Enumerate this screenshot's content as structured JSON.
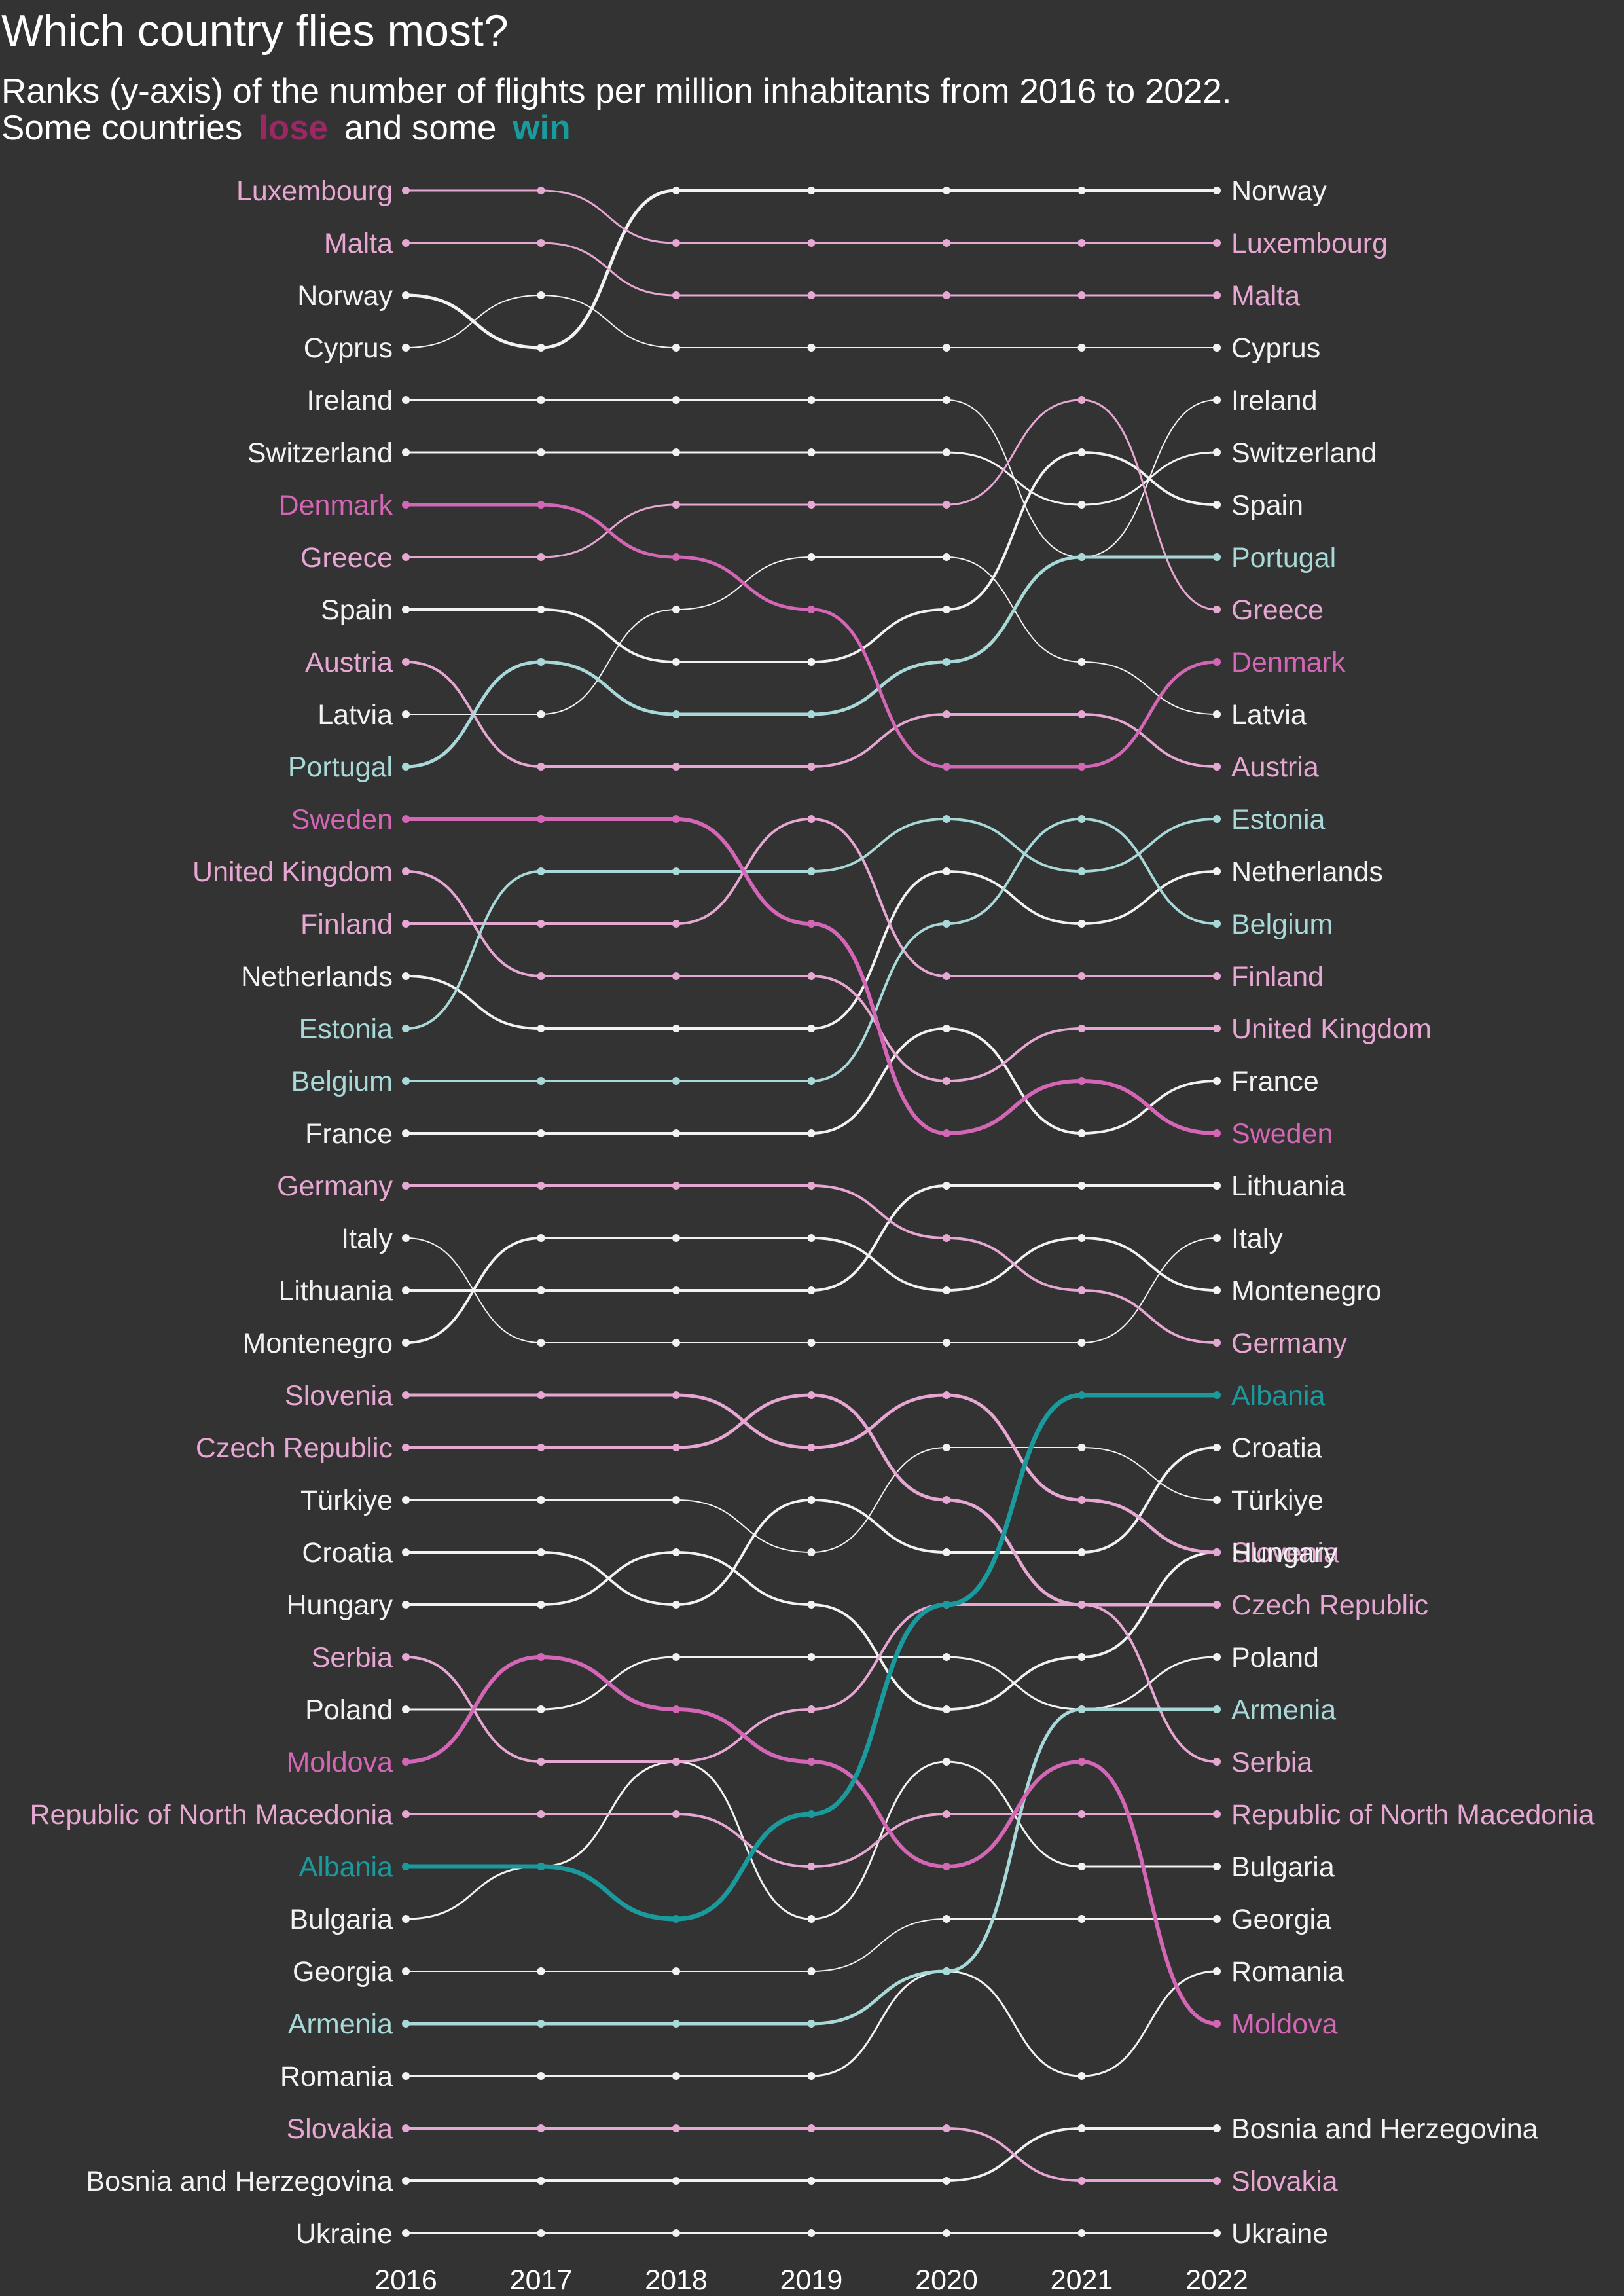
{
  "chart_data": {
    "type": "bump",
    "title": "Which country flies most?",
    "subtitle": "Ranks (y-axis) of the number of flights per million inhabitants from 2016 to 2022.",
    "subtitle_line2_parts": [
      "Some countries ",
      "lose",
      " and some ",
      "win"
    ],
    "years": [
      "2016",
      "2017",
      "2018",
      "2019",
      "2020",
      "2021",
      "2022"
    ],
    "colors": {
      "background": "#333333",
      "neutral": "#f2f2f2",
      "lose_strong": "#d466b6",
      "lose_light": "#e7a7d3",
      "win_strong": "#1a9a9c",
      "win_light": "#a8d8d8"
    },
    "series": [
      {
        "name": "Luxembourg",
        "ranks": [
          1,
          1,
          2,
          2,
          2,
          2,
          2
        ],
        "group": "lose_light",
        "width": 3
      },
      {
        "name": "Malta",
        "ranks": [
          2,
          2,
          3,
          3,
          3,
          3,
          3
        ],
        "group": "lose_light",
        "width": 3
      },
      {
        "name": "Norway",
        "ranks": [
          3,
          4,
          1,
          1,
          1,
          1,
          1
        ],
        "group": "neutral",
        "width": 5
      },
      {
        "name": "Cyprus",
        "ranks": [
          4,
          3,
          4,
          4,
          4,
          4,
          4
        ],
        "group": "neutral",
        "width": 2
      },
      {
        "name": "Ireland",
        "ranks": [
          5,
          5,
          5,
          5,
          5,
          8,
          5
        ],
        "group": "neutral",
        "width": 2
      },
      {
        "name": "Switzerland",
        "ranks": [
          6,
          6,
          6,
          6,
          6,
          7,
          6
        ],
        "group": "neutral",
        "width": 3
      },
      {
        "name": "Denmark",
        "ranks": [
          7,
          7,
          8,
          9,
          12,
          12,
          10
        ],
        "group": "lose_strong",
        "width": 5
      },
      {
        "name": "Greece",
        "ranks": [
          8,
          8,
          7,
          7,
          7,
          5,
          9
        ],
        "group": "lose_light",
        "width": 3
      },
      {
        "name": "Spain",
        "ranks": [
          9,
          9,
          10,
          10,
          9,
          6,
          7
        ],
        "group": "neutral",
        "width": 4
      },
      {
        "name": "Austria",
        "ranks": [
          10,
          12,
          12,
          12,
          11,
          11,
          12
        ],
        "group": "lose_light",
        "width": 4
      },
      {
        "name": "Latvia",
        "ranks": [
          11,
          11,
          9,
          8,
          8,
          10,
          11
        ],
        "group": "neutral",
        "width": 2
      },
      {
        "name": "Portugal",
        "ranks": [
          12,
          10,
          11,
          11,
          10,
          8,
          8
        ],
        "group": "win_light",
        "width": 5
      },
      {
        "name": "Sweden",
        "ranks": [
          13,
          13,
          13,
          15,
          19,
          18,
          19
        ],
        "group": "lose_strong",
        "width": 6
      },
      {
        "name": "United Kingdom",
        "ranks": [
          14,
          16,
          16,
          16,
          18,
          17,
          17
        ],
        "group": "lose_light",
        "width": 4
      },
      {
        "name": "Finland",
        "ranks": [
          15,
          15,
          15,
          13,
          16,
          16,
          16
        ],
        "group": "lose_light",
        "width": 4
      },
      {
        "name": "Netherlands",
        "ranks": [
          16,
          17,
          17,
          17,
          14,
          15,
          14
        ],
        "group": "neutral",
        "width": 4
      },
      {
        "name": "Estonia",
        "ranks": [
          17,
          14,
          14,
          14,
          13,
          14,
          13
        ],
        "group": "win_light",
        "width": 4
      },
      {
        "name": "Belgium",
        "ranks": [
          18,
          18,
          18,
          18,
          15,
          13,
          15
        ],
        "group": "win_light",
        "width": 4
      },
      {
        "name": "France",
        "ranks": [
          19,
          19,
          19,
          19,
          17,
          19,
          18
        ],
        "group": "neutral",
        "width": 4
      },
      {
        "name": "Germany",
        "ranks": [
          20,
          20,
          20,
          20,
          21,
          22,
          23
        ],
        "group": "lose_light",
        "width": 4
      },
      {
        "name": "Italy",
        "ranks": [
          21,
          23,
          23,
          23,
          23,
          23,
          21
        ],
        "group": "neutral",
        "width": 2
      },
      {
        "name": "Lithuania",
        "ranks": [
          22,
          22,
          22,
          22,
          20,
          20,
          20
        ],
        "group": "neutral",
        "width": 4
      },
      {
        "name": "Montenegro",
        "ranks": [
          23,
          21,
          21,
          21,
          22,
          21,
          22
        ],
        "group": "neutral",
        "width": 4
      },
      {
        "name": "Slovenia",
        "ranks": [
          24,
          24,
          24,
          25,
          24,
          26,
          27
        ],
        "group": "lose_light",
        "width": 5
      },
      {
        "name": "Czech Republic",
        "ranks": [
          25,
          25,
          25,
          24,
          26,
          28,
          28
        ],
        "group": "lose_light",
        "width": 5
      },
      {
        "name": "Türkiye",
        "ranks": [
          26,
          26,
          26,
          27,
          25,
          25,
          26
        ],
        "group": "neutral",
        "width": 2
      },
      {
        "name": "Croatia",
        "ranks": [
          27,
          27,
          28,
          26,
          27,
          27,
          25
        ],
        "group": "neutral",
        "width": 4
      },
      {
        "name": "Hungary",
        "ranks": [
          28,
          28,
          27,
          28,
          30,
          29,
          27
        ],
        "group": "neutral",
        "width": 4
      },
      {
        "name": "Serbia",
        "ranks": [
          29,
          31,
          31,
          30,
          28,
          28,
          31
        ],
        "group": "lose_light",
        "width": 4
      },
      {
        "name": "Poland",
        "ranks": [
          30,
          30,
          29,
          29,
          29,
          30,
          29
        ],
        "group": "neutral",
        "width": 3
      },
      {
        "name": "Moldova",
        "ranks": [
          31,
          29,
          30,
          31,
          33,
          31,
          36
        ],
        "group": "lose_strong",
        "width": 6
      },
      {
        "name": "Republic of North Macedonia",
        "ranks": [
          32,
          32,
          32,
          33,
          32,
          32,
          32
        ],
        "group": "lose_light",
        "width": 4
      },
      {
        "name": "Albania",
        "ranks": [
          33,
          33,
          34,
          32,
          28,
          24,
          24
        ],
        "group": "win_strong",
        "width": 7
      },
      {
        "name": "Bulgaria",
        "ranks": [
          34,
          33,
          31,
          34,
          31,
          33,
          33
        ],
        "group": "neutral",
        "width": 3
      },
      {
        "name": "Georgia",
        "ranks": [
          35,
          35,
          35,
          35,
          34,
          34,
          34
        ],
        "group": "neutral",
        "width": 2
      },
      {
        "name": "Armenia",
        "ranks": [
          36,
          36,
          36,
          36,
          35,
          30,
          30
        ],
        "group": "win_light",
        "width": 5
      },
      {
        "name": "Romania",
        "ranks": [
          37,
          37,
          37,
          37,
          35,
          37,
          35
        ],
        "group": "neutral",
        "width": 3
      },
      {
        "name": "Slovakia",
        "ranks": [
          38,
          38,
          38,
          38,
          38,
          39,
          39
        ],
        "group": "lose_light",
        "width": 4
      },
      {
        "name": "Bosnia and Herzegovina",
        "ranks": [
          39,
          39,
          39,
          39,
          39,
          38,
          38
        ],
        "group": "neutral",
        "width": 4
      },
      {
        "name": "Ukraine",
        "ranks": [
          40,
          40,
          40,
          40,
          40,
          40,
          40
        ],
        "group": "neutral",
        "width": 2
      }
    ]
  }
}
